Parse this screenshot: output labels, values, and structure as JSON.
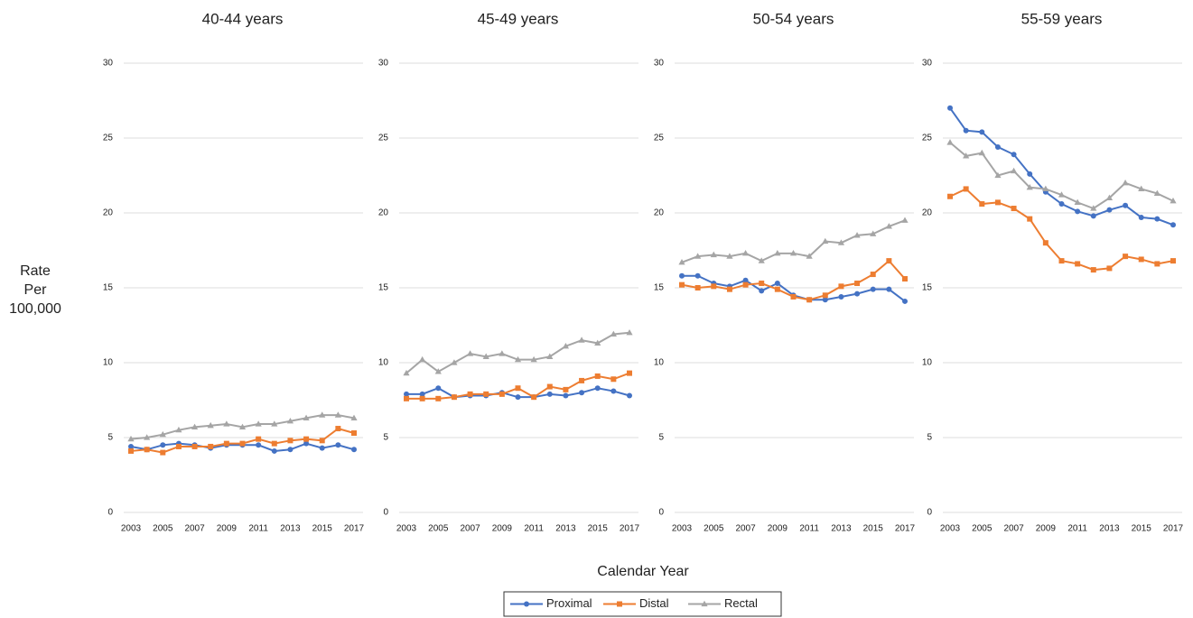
{
  "chart_data": [
    {
      "type": "line",
      "title": "40-44 years",
      "x": [
        2003,
        2004,
        2005,
        2006,
        2007,
        2008,
        2009,
        2010,
        2011,
        2012,
        2013,
        2014,
        2015,
        2016,
        2017
      ],
      "xlim": [
        2003,
        2017
      ],
      "xticks": [
        2003,
        2005,
        2007,
        2009,
        2011,
        2013,
        2015,
        2017
      ],
      "ylim": [
        0,
        30
      ],
      "yticks": [
        0,
        5,
        10,
        15,
        20,
        25,
        30
      ],
      "grid": true,
      "series": [
        {
          "name": "Proximal",
          "color": "#4472c4",
          "marker": "circle",
          "values": [
            4.4,
            4.2,
            4.5,
            4.6,
            4.5,
            4.3,
            4.5,
            4.5,
            4.5,
            4.1,
            4.2,
            4.6,
            4.3,
            4.5,
            4.2
          ]
        },
        {
          "name": "Distal",
          "color": "#ed7d31",
          "marker": "square",
          "values": [
            4.1,
            4.2,
            4.0,
            4.4,
            4.4,
            4.4,
            4.6,
            4.6,
            4.9,
            4.6,
            4.8,
            4.9,
            4.8,
            5.6,
            5.3
          ]
        },
        {
          "name": "Rectal",
          "color": "#a5a5a5",
          "marker": "triangle",
          "values": [
            4.9,
            5.0,
            5.2,
            5.5,
            5.7,
            5.8,
            5.9,
            5.7,
            5.9,
            5.9,
            6.1,
            6.3,
            6.5,
            6.5,
            6.3
          ]
        }
      ]
    },
    {
      "type": "line",
      "title": "45-49 years",
      "x": [
        2003,
        2004,
        2005,
        2006,
        2007,
        2008,
        2009,
        2010,
        2011,
        2012,
        2013,
        2014,
        2015,
        2016,
        2017
      ],
      "xlim": [
        2003,
        2017
      ],
      "xticks": [
        2003,
        2005,
        2007,
        2009,
        2011,
        2013,
        2015,
        2017
      ],
      "ylim": [
        0,
        30
      ],
      "yticks": [
        0,
        5,
        10,
        15,
        20,
        25,
        30
      ],
      "grid": true,
      "series": [
        {
          "name": "Proximal",
          "color": "#4472c4",
          "marker": "circle",
          "values": [
            7.9,
            7.9,
            8.3,
            7.7,
            7.8,
            7.8,
            8.0,
            7.7,
            7.7,
            7.9,
            7.8,
            8.0,
            8.3,
            8.1,
            7.8
          ]
        },
        {
          "name": "Distal",
          "color": "#ed7d31",
          "marker": "square",
          "values": [
            7.6,
            7.6,
            7.6,
            7.7,
            7.9,
            7.9,
            7.9,
            8.3,
            7.7,
            8.4,
            8.2,
            8.8,
            9.1,
            8.9,
            9.3
          ]
        },
        {
          "name": "Rectal",
          "color": "#a5a5a5",
          "marker": "triangle",
          "values": [
            9.3,
            10.2,
            9.4,
            10.0,
            10.6,
            10.4,
            10.6,
            10.2,
            10.2,
            10.4,
            11.1,
            11.5,
            11.3,
            11.9,
            12.0
          ]
        }
      ]
    },
    {
      "type": "line",
      "title": "50-54 years",
      "x": [
        2003,
        2004,
        2005,
        2006,
        2007,
        2008,
        2009,
        2010,
        2011,
        2012,
        2013,
        2014,
        2015,
        2016,
        2017
      ],
      "xlim": [
        2003,
        2017
      ],
      "xticks": [
        2003,
        2005,
        2007,
        2009,
        2011,
        2013,
        2015,
        2017
      ],
      "ylim": [
        0,
        30
      ],
      "yticks": [
        0,
        5,
        10,
        15,
        20,
        25,
        30
      ],
      "grid": true,
      "series": [
        {
          "name": "Proximal",
          "color": "#4472c4",
          "marker": "circle",
          "values": [
            15.8,
            15.8,
            15.3,
            15.1,
            15.5,
            14.8,
            15.3,
            14.5,
            14.2,
            14.2,
            14.4,
            14.6,
            14.9,
            14.9,
            14.1
          ]
        },
        {
          "name": "Distal",
          "color": "#ed7d31",
          "marker": "square",
          "values": [
            15.2,
            15.0,
            15.1,
            14.9,
            15.2,
            15.3,
            14.9,
            14.4,
            14.2,
            14.5,
            15.1,
            15.3,
            15.9,
            16.8,
            15.6
          ]
        },
        {
          "name": "Rectal",
          "color": "#a5a5a5",
          "marker": "triangle",
          "values": [
            16.7,
            17.1,
            17.2,
            17.1,
            17.3,
            16.8,
            17.3,
            17.3,
            17.1,
            18.1,
            18.0,
            18.5,
            18.6,
            19.1,
            19.5
          ]
        }
      ]
    },
    {
      "type": "line",
      "title": "55-59 years",
      "x": [
        2003,
        2004,
        2005,
        2006,
        2007,
        2008,
        2009,
        2010,
        2011,
        2012,
        2013,
        2014,
        2015,
        2016,
        2017
      ],
      "xlim": [
        2003,
        2017
      ],
      "xticks": [
        2003,
        2005,
        2007,
        2009,
        2011,
        2013,
        2015,
        2017
      ],
      "ylim": [
        0,
        30
      ],
      "yticks": [
        0,
        5,
        10,
        15,
        20,
        25,
        30
      ],
      "grid": true,
      "series": [
        {
          "name": "Proximal",
          "color": "#4472c4",
          "marker": "circle",
          "values": [
            27.0,
            25.5,
            25.4,
            24.4,
            23.9,
            22.6,
            21.4,
            20.6,
            20.1,
            19.8,
            20.2,
            20.5,
            19.7,
            19.6,
            19.2
          ]
        },
        {
          "name": "Distal",
          "color": "#ed7d31",
          "marker": "square",
          "values": [
            21.1,
            21.6,
            20.6,
            20.7,
            20.3,
            19.6,
            18.0,
            16.8,
            16.6,
            16.2,
            16.3,
            17.1,
            16.9,
            16.6,
            16.8
          ]
        },
        {
          "name": "Rectal",
          "color": "#a5a5a5",
          "marker": "triangle",
          "values": [
            24.7,
            23.8,
            24.0,
            22.5,
            22.8,
            21.7,
            21.6,
            21.2,
            20.7,
            20.3,
            21.0,
            22.0,
            21.6,
            21.3,
            20.8
          ]
        }
      ]
    }
  ],
  "y_label": "Rate Per 100,000",
  "x_label": "Calendar Year",
  "legend": "bottom"
}
